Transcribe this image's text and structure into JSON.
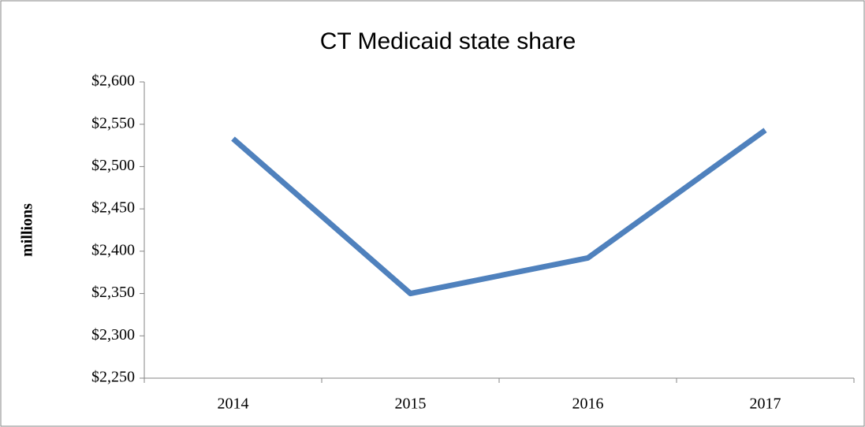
{
  "chart_data": {
    "type": "line",
    "title": "CT Medicaid state share",
    "y_label": "millions",
    "categories": [
      "2014",
      "2015",
      "2016",
      "2017"
    ],
    "series": [
      {
        "name": "CT Medicaid state share",
        "color": "#4f81bd",
        "values": [
          2533,
          2350,
          2392,
          2543
        ]
      }
    ],
    "ylim": [
      2250,
      2600
    ],
    "yticks": [
      {
        "value": 2250,
        "label": "$2,250"
      },
      {
        "value": 2300,
        "label": "$2,300"
      },
      {
        "value": 2350,
        "label": "$2,350"
      },
      {
        "value": 2400,
        "label": "$2,400"
      },
      {
        "value": 2450,
        "label": "$2,450"
      },
      {
        "value": 2500,
        "label": "$2,500"
      },
      {
        "value": 2550,
        "label": "$2,550"
      },
      {
        "value": 2600,
        "label": "$2,600"
      }
    ],
    "grid": false,
    "legend": false
  }
}
